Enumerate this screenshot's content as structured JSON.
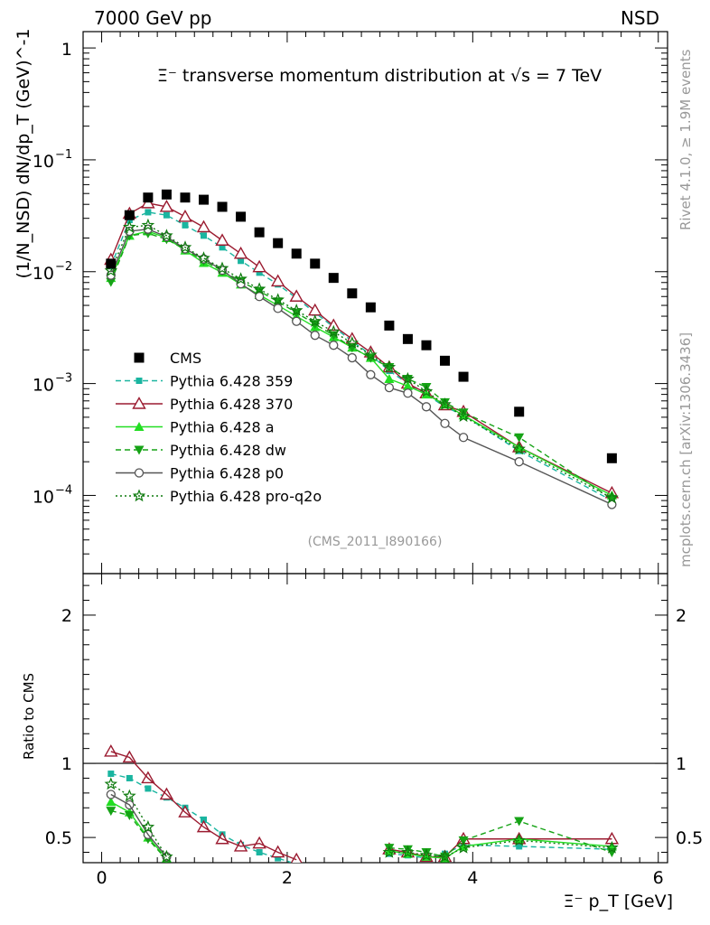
{
  "header": {
    "energy_label": "7000 GeV pp",
    "process_label": "NSD",
    "plot_title": "Ξ⁻ transverse momentum distribution at √s = 7 TeV",
    "analysis_id": "(CMS_2011_I890166)",
    "side_label_top": "Rivet 4.1.0, ≥ 1.9M events",
    "side_label_bottom": "mcplots.cern.ch [arXiv:1306.3436]"
  },
  "chart_data": {
    "type": "line",
    "xlabel": "Ξ⁻ p_T [GeV]",
    "ylabel": "(1/N_NSD) dN/dp_T (GeV)^-1",
    "ratio_ylabel": "Ratio to CMS",
    "x_range": [
      -0.2,
      6.1
    ],
    "y_range_log": [
      2e-05,
      1.4
    ],
    "ratio_range": [
      0.33,
      2.28
    ],
    "x_ticks": [
      {
        "v": 0,
        "label": "0"
      },
      {
        "v": 2,
        "label": "2"
      },
      {
        "v": 4,
        "label": "4"
      },
      {
        "v": 6,
        "label": "6"
      }
    ],
    "y_ticks": [
      {
        "v": 1,
        "base": "1",
        "exp": ""
      },
      {
        "v": 0.1,
        "base": "10",
        "exp": "−1"
      },
      {
        "v": 0.01,
        "base": "10",
        "exp": "−2"
      },
      {
        "v": 0.001,
        "base": "10",
        "exp": "−3"
      },
      {
        "v": 0.0001,
        "base": "10",
        "exp": "−4"
      }
    ],
    "ratio_ticks": [
      {
        "v": 0.5,
        "label": "0.5"
      },
      {
        "v": 1,
        "label": "1"
      },
      {
        "v": 2,
        "label": "2"
      }
    ],
    "reference": {
      "name": "CMS",
      "x": [
        0.1,
        0.3,
        0.5,
        0.7,
        0.9,
        1.1,
        1.3,
        1.5,
        1.7,
        1.9,
        2.1,
        2.3,
        2.5,
        2.7,
        2.9,
        3.1,
        3.3,
        3.5,
        3.7,
        3.9,
        4.5,
        5.5
      ],
      "y": [
        0.0118,
        0.032,
        0.046,
        0.049,
        0.046,
        0.044,
        0.038,
        0.031,
        0.0225,
        0.018,
        0.0145,
        0.0118,
        0.0088,
        0.0064,
        0.0048,
        0.0033,
        0.0025,
        0.0022,
        0.0016,
        0.00115,
        0.00056,
        0.000215
      ]
    },
    "series": [
      {
        "name": "Pythia 6.428 359",
        "color": "#1ab5a0",
        "dash": "6,4",
        "marker": "square-filled",
        "x": [
          0.1,
          0.3,
          0.5,
          0.7,
          0.9,
          1.1,
          1.3,
          1.5,
          1.7,
          1.9,
          2.1,
          2.3,
          2.5,
          2.7,
          2.9,
          3.1,
          3.3,
          3.5,
          3.7,
          3.9,
          4.5,
          5.5
        ],
        "y": [
          0.0112,
          0.029,
          0.034,
          0.032,
          0.026,
          0.021,
          0.0165,
          0.0125,
          0.0098,
          0.0077,
          0.0058,
          0.0043,
          0.0032,
          0.0024,
          0.0018,
          0.0013,
          0.001,
          0.0008,
          0.00062,
          0.00052,
          0.00025,
          9e-05
        ],
        "ratio": [
          0.93,
          0.9,
          0.83,
          0.77,
          0.7,
          0.62,
          0.52,
          0.45,
          0.4,
          0.36,
          0.32,
          null,
          null,
          null,
          null,
          0.39,
          0.38,
          0.36,
          0.39,
          0.45,
          0.44,
          0.42
        ]
      },
      {
        "name": "Pythia 6.428 370",
        "color": "#9b1b30",
        "dash": "",
        "marker": "triangle-open",
        "x": [
          0.1,
          0.3,
          0.5,
          0.7,
          0.9,
          1.1,
          1.3,
          1.5,
          1.7,
          1.9,
          2.1,
          2.3,
          2.5,
          2.7,
          2.9,
          3.1,
          3.3,
          3.5,
          3.7,
          3.9,
          4.5,
          5.5
        ],
        "y": [
          0.0128,
          0.033,
          0.041,
          0.038,
          0.031,
          0.025,
          0.019,
          0.0145,
          0.011,
          0.0082,
          0.006,
          0.0045,
          0.0033,
          0.0025,
          0.0019,
          0.0014,
          0.001,
          0.00082,
          0.00064,
          0.00056,
          0.00027,
          0.000105
        ],
        "ratio": [
          1.08,
          1.04,
          0.9,
          0.79,
          0.67,
          0.57,
          0.49,
          0.44,
          0.46,
          0.4,
          0.35,
          null,
          null,
          null,
          null,
          0.42,
          0.4,
          0.37,
          0.37,
          0.49,
          0.49,
          0.49
        ]
      },
      {
        "name": "Pythia 6.428 a",
        "color": "#22dd22",
        "dash": "",
        "marker": "triangle-filled",
        "x": [
          0.1,
          0.3,
          0.5,
          0.7,
          0.9,
          1.1,
          1.3,
          1.5,
          1.7,
          1.9,
          2.1,
          2.3,
          2.5,
          2.7,
          2.9,
          3.1,
          3.3,
          3.5,
          3.7,
          3.9,
          4.5,
          5.5
        ],
        "y": [
          0.0088,
          0.021,
          0.023,
          0.02,
          0.0155,
          0.012,
          0.0098,
          0.0077,
          0.0062,
          0.005,
          0.004,
          0.0032,
          0.0026,
          0.0021,
          0.0017,
          0.0011,
          0.00095,
          0.0008,
          0.00065,
          0.00052,
          0.00027,
          0.0001
        ],
        "ratio": [
          0.74,
          0.67,
          0.5,
          0.36,
          null,
          null,
          null,
          null,
          null,
          null,
          null,
          null,
          null,
          null,
          null,
          0.41,
          0.39,
          0.37,
          0.36,
          0.44,
          0.49,
          0.44
        ]
      },
      {
        "name": "Pythia 6.428 dw",
        "color": "#16a316",
        "dash": "6,4",
        "marker": "triangle-down-filled",
        "x": [
          0.1,
          0.3,
          0.5,
          0.7,
          0.9,
          1.1,
          1.3,
          1.5,
          1.7,
          1.9,
          2.1,
          2.3,
          2.5,
          2.7,
          2.9,
          3.1,
          3.3,
          3.5,
          3.7,
          3.9,
          4.5,
          5.5
        ],
        "y": [
          0.0081,
          0.021,
          0.022,
          0.0195,
          0.0158,
          0.0125,
          0.0102,
          0.0082,
          0.0067,
          0.0054,
          0.0043,
          0.0034,
          0.0027,
          0.0021,
          0.0017,
          0.0014,
          0.0011,
          0.00093,
          0.00068,
          0.00055,
          0.00033,
          9.3e-05
        ],
        "ratio": [
          0.68,
          0.65,
          0.49,
          0.35,
          null,
          null,
          null,
          null,
          null,
          null,
          null,
          null,
          null,
          null,
          null,
          0.43,
          0.42,
          0.4,
          0.37,
          0.48,
          0.61,
          0.4
        ]
      },
      {
        "name": "Pythia 6.428 p0",
        "color": "#555555",
        "dash": "",
        "marker": "circle-open",
        "x": [
          0.1,
          0.3,
          0.5,
          0.7,
          0.9,
          1.1,
          1.3,
          1.5,
          1.7,
          1.9,
          2.1,
          2.3,
          2.5,
          2.7,
          2.9,
          3.1,
          3.3,
          3.5,
          3.7,
          3.9,
          4.5,
          5.5
        ],
        "y": [
          0.0093,
          0.023,
          0.024,
          0.0205,
          0.016,
          0.013,
          0.0103,
          0.0078,
          0.006,
          0.0047,
          0.0036,
          0.0027,
          0.0022,
          0.0017,
          0.0012,
          0.00092,
          0.00082,
          0.00062,
          0.00044,
          0.00033,
          0.0002,
          8.3e-05
        ],
        "ratio": [
          0.79,
          0.72,
          0.52,
          0.37,
          null,
          null,
          null,
          null,
          null,
          null,
          null,
          null,
          null,
          null,
          null,
          null,
          null,
          null,
          null,
          null,
          null,
          null
        ]
      },
      {
        "name": "Pythia 6.428 pro-q2o",
        "color": "#0d7a0d",
        "dash": "2,3",
        "marker": "star-open",
        "x": [
          0.1,
          0.3,
          0.5,
          0.7,
          0.9,
          1.1,
          1.3,
          1.5,
          1.7,
          1.9,
          2.1,
          2.3,
          2.5,
          2.7,
          2.9,
          3.1,
          3.3,
          3.5,
          3.7,
          3.9,
          4.5,
          5.5
        ],
        "y": [
          0.0102,
          0.025,
          0.026,
          0.021,
          0.0165,
          0.0132,
          0.0107,
          0.0086,
          0.007,
          0.0056,
          0.0045,
          0.0036,
          0.0029,
          0.0023,
          0.0018,
          0.0014,
          0.0011,
          0.00085,
          0.00065,
          0.00051,
          0.00026,
          9.5e-05
        ],
        "ratio": [
          0.86,
          0.78,
          0.57,
          0.37,
          null,
          null,
          null,
          null,
          null,
          null,
          null,
          null,
          null,
          null,
          null,
          0.4,
          0.4,
          0.38,
          0.37,
          0.43,
          0.48,
          0.43
        ]
      }
    ]
  }
}
